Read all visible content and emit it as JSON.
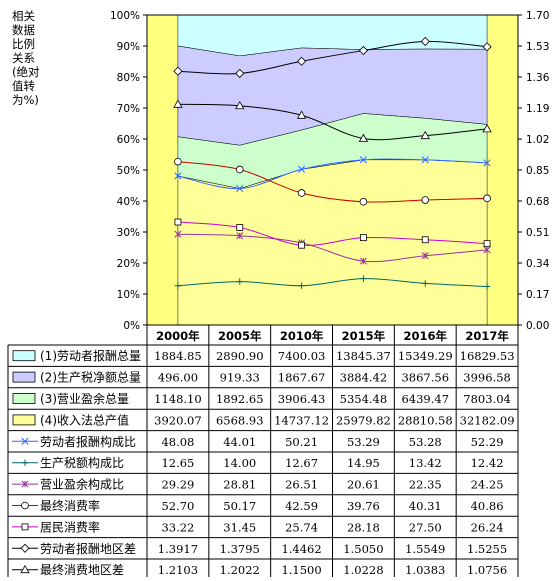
{
  "chart_data": {
    "type": "area",
    "title": "",
    "left_axis_caption": [
      "相关",
      "数据",
      "比例",
      "关系",
      "(绝对",
      "值转",
      "为%)"
    ],
    "categories": [
      "2000年",
      "2005年",
      "2010年",
      "2015年",
      "2016年",
      "2017年"
    ],
    "y_left": {
      "range": [
        0,
        100
      ],
      "ticks": [
        "0%",
        "10%",
        "20%",
        "30%",
        "40%",
        "50%",
        "60%",
        "70%",
        "80%",
        "90%",
        "100%"
      ]
    },
    "y_right": {
      "range": [
        0,
        1.7
      ],
      "ticks": [
        "0.00",
        "0.17",
        "0.34",
        "0.51",
        "0.68",
        "0.85",
        "1.02",
        "1.19",
        "1.36",
        "1.53",
        "1.70"
      ]
    },
    "grid": false,
    "legend_placement": "bottom table",
    "colors": {
      "s1": "#ccffff",
      "s2": "#ccccff",
      "s3": "#ccffcc",
      "s4": "#ffff99",
      "band": "#ffff80",
      "line_blue": "#3366ff",
      "line_teal": "#006666",
      "line_purple": "#993399",
      "line_red": "#cc0000",
      "line_magenta": "#cc00cc",
      "line_black": "#000000"
    },
    "area_series": [
      {
        "key": "s1",
        "name": "(1)劳动者报酬总量",
        "values": [
          "1884.85",
          "2890.90",
          "7400.03",
          "13845.37",
          "15349.29",
          "16829.53"
        ]
      },
      {
        "key": "s2",
        "name": "(2)生产税净额总量",
        "values": [
          "496.00",
          "919.33",
          "1867.67",
          "3884.42",
          "3867.56",
          "3996.58"
        ]
      },
      {
        "key": "s3",
        "name": "(3)营业盈余总量",
        "values": [
          "1148.10",
          "1892.65",
          "3906.43",
          "5354.48",
          "6439.47",
          "7803.04"
        ]
      },
      {
        "key": "s4",
        "name": "(4)收入法总产值",
        "values": [
          "3920.07",
          "6568.93",
          "14737.12",
          "25979.82",
          "28810.58",
          "32182.09"
        ]
      }
    ],
    "line_series": [
      {
        "name": "劳动者报酬构成比",
        "axis": "left",
        "marker": "x",
        "color": "line_blue",
        "values": [
          "48.08",
          "44.01",
          "50.21",
          "53.29",
          "53.28",
          "52.29"
        ]
      },
      {
        "name": "生产税额构成比",
        "axis": "left",
        "marker": "plus",
        "color": "line_teal",
        "values": [
          "12.65",
          "14.00",
          "12.67",
          "14.95",
          "13.42",
          "12.42"
        ]
      },
      {
        "name": "营业盈余构成比",
        "axis": "left",
        "marker": "star",
        "color": "line_purple",
        "values": [
          "29.29",
          "28.81",
          "26.51",
          "20.61",
          "22.35",
          "24.25"
        ]
      },
      {
        "name": "最终消费率",
        "axis": "left",
        "marker": "circle",
        "color": "line_red",
        "values": [
          "52.70",
          "50.17",
          "42.59",
          "39.76",
          "40.31",
          "40.86"
        ]
      },
      {
        "name": "居民消费率",
        "axis": "left",
        "marker": "square",
        "color": "line_magenta",
        "values": [
          "33.22",
          "31.45",
          "25.74",
          "28.18",
          "27.50",
          "26.24"
        ]
      },
      {
        "name": "劳动者报酬地区差",
        "axis": "right",
        "marker": "diamond",
        "color": "line_black",
        "values": [
          "1.3917",
          "1.3795",
          "1.4462",
          "1.5050",
          "1.5549",
          "1.5255"
        ]
      },
      {
        "name": "最终消费地区差",
        "axis": "right",
        "marker": "triangle",
        "color": "line_black",
        "values": [
          "1.2103",
          "1.2022",
          "1.1500",
          "1.0228",
          "1.0383",
          "1.0756"
        ]
      }
    ]
  }
}
